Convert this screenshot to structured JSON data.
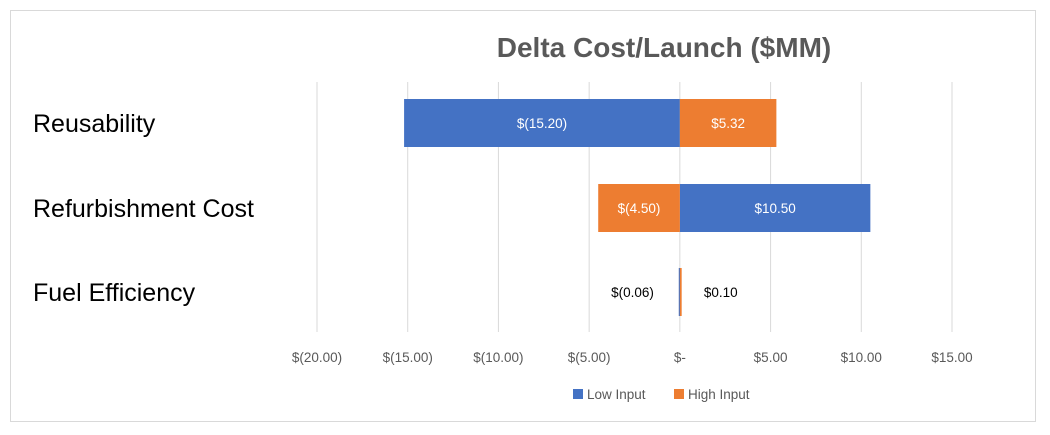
{
  "chart_data": {
    "type": "bar",
    "orientation": "horizontal",
    "title": "Delta Cost/Launch ($MM)",
    "categories": [
      "Reusability",
      "Refurbishment Cost",
      "Fuel Efficiency"
    ],
    "series": [
      {
        "name": "Low Input",
        "color": "#4472C4",
        "values": [
          -15.2,
          10.5,
          -0.06
        ],
        "labels": [
          "$(15.20)",
          "$10.50",
          "$(0.06)"
        ]
      },
      {
        "name": "High Input",
        "color": "#ED7D31",
        "values": [
          5.32,
          -4.5,
          0.1
        ],
        "labels": [
          "$5.32",
          "$(4.50)",
          "$0.10"
        ]
      }
    ],
    "xlim": [
      -20,
      15
    ],
    "xticks": [
      -20,
      -15,
      -10,
      -5,
      0,
      5,
      10,
      15
    ],
    "xtick_labels": [
      "$(20.00)",
      "$(15.00)",
      "$(10.00)",
      "$(5.00)",
      "$-",
      "$5.00",
      "$10.00",
      "$15.00"
    ],
    "xlabel": "",
    "ylabel": "",
    "grid": "vertical",
    "legend": "bottom-center"
  }
}
